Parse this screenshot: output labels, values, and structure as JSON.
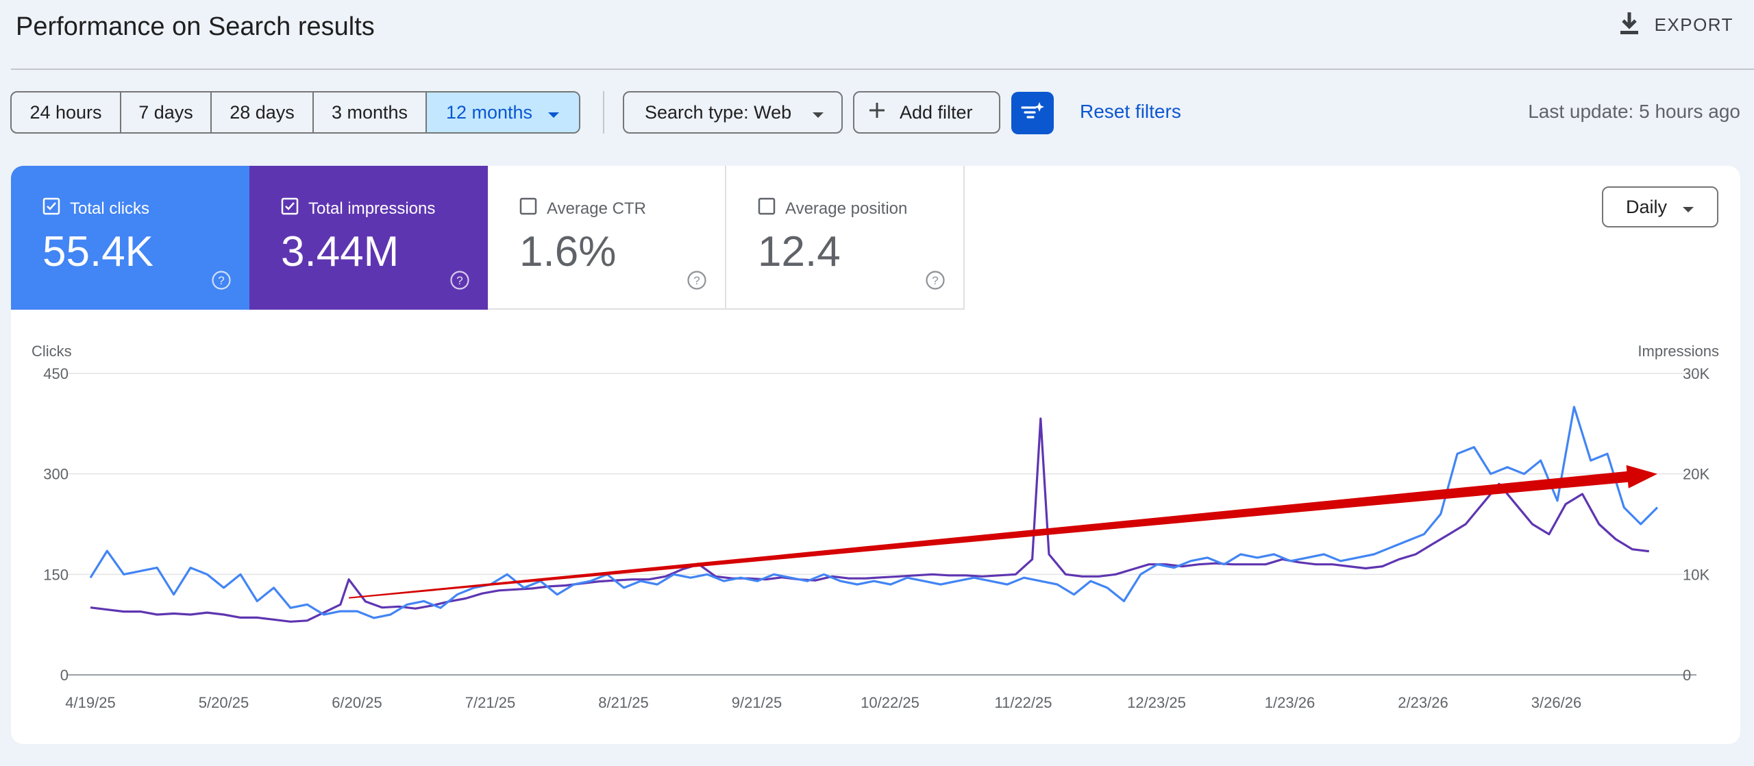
{
  "header": {
    "title": "Performance on Search results",
    "export_label": "EXPORT"
  },
  "toolbar": {
    "ranges": [
      "24 hours",
      "7 days",
      "28 days",
      "3 months",
      "12 months"
    ],
    "search_type": "Search type: Web",
    "add_filter": "Add filter",
    "reset_filters": "Reset filters",
    "last_update": "Last update: 5 hours ago"
  },
  "metrics": {
    "clicks": {
      "label": "Total clicks",
      "value": "55.4K",
      "checked": true
    },
    "impressions": {
      "label": "Total impressions",
      "value": "3.44M",
      "checked": true
    },
    "ctr": {
      "label": "Average CTR",
      "value": "1.6%",
      "checked": false
    },
    "position": {
      "label": "Average position",
      "value": "12.4",
      "checked": false
    }
  },
  "granularity": "Daily",
  "colors": {
    "clicks": "#4285f4",
    "impressions": "#5e35b1",
    "accent": "#0b57d0",
    "trend_arrow": "#d50000"
  },
  "chart_data": {
    "type": "line",
    "left_axis_title": "Clicks",
    "right_axis_title": "Impressions",
    "left_ticks": [
      "0",
      "150",
      "300",
      "450"
    ],
    "right_ticks": [
      "0",
      "10K",
      "20K",
      "30K"
    ],
    "ylim_left": [
      0,
      450
    ],
    "ylim_right": [
      0,
      30000
    ],
    "x_tick_labels": [
      "4/19/25",
      "5/20/25",
      "6/20/25",
      "7/21/25",
      "8/21/25",
      "9/21/25",
      "10/22/25",
      "11/22/25",
      "12/23/25",
      "1/23/26",
      "2/23/26",
      "3/26/26"
    ],
    "grid": true,
    "series": [
      {
        "name": "Total clicks",
        "axis": "left",
        "color": "#4285f4",
        "points": [
          [
            "4/19/25",
            145
          ],
          [
            "4/23/25",
            185
          ],
          [
            "4/27/25",
            150
          ],
          [
            "5/1/25",
            155
          ],
          [
            "5/5/25",
            160
          ],
          [
            "5/9/25",
            120
          ],
          [
            "5/13/25",
            160
          ],
          [
            "5/17/25",
            150
          ],
          [
            "5/21/25",
            130
          ],
          [
            "5/25/25",
            150
          ],
          [
            "5/29/25",
            110
          ],
          [
            "6/2/25",
            130
          ],
          [
            "6/6/25",
            100
          ],
          [
            "6/10/25",
            105
          ],
          [
            "6/14/25",
            90
          ],
          [
            "6/18/25",
            95
          ],
          [
            "6/22/25",
            95
          ],
          [
            "6/26/25",
            85
          ],
          [
            "6/30/25",
            90
          ],
          [
            "7/4/25",
            105
          ],
          [
            "7/8/25",
            110
          ],
          [
            "7/12/25",
            100
          ],
          [
            "7/16/25",
            120
          ],
          [
            "7/20/25",
            130
          ],
          [
            "7/24/25",
            135
          ],
          [
            "7/28/25",
            150
          ],
          [
            "8/1/25",
            130
          ],
          [
            "8/5/25",
            140
          ],
          [
            "8/9/25",
            120
          ],
          [
            "8/13/25",
            135
          ],
          [
            "8/17/25",
            140
          ],
          [
            "8/21/25",
            150
          ],
          [
            "8/25/25",
            130
          ],
          [
            "8/29/25",
            140
          ],
          [
            "9/2/25",
            135
          ],
          [
            "9/6/25",
            150
          ],
          [
            "9/10/25",
            145
          ],
          [
            "9/14/25",
            150
          ],
          [
            "9/18/25",
            140
          ],
          [
            "9/22/25",
            145
          ],
          [
            "9/26/25",
            140
          ],
          [
            "9/30/25",
            150
          ],
          [
            "10/4/25",
            145
          ],
          [
            "10/8/25",
            140
          ],
          [
            "10/12/25",
            150
          ],
          [
            "10/16/25",
            140
          ],
          [
            "10/20/25",
            135
          ],
          [
            "10/24/25",
            140
          ],
          [
            "10/28/25",
            135
          ],
          [
            "11/1/25",
            145
          ],
          [
            "11/5/25",
            140
          ],
          [
            "11/9/25",
            135
          ],
          [
            "11/13/25",
            140
          ],
          [
            "11/17/25",
            145
          ],
          [
            "11/21/25",
            140
          ],
          [
            "11/25/25",
            135
          ],
          [
            "11/29/25",
            145
          ],
          [
            "12/3/25",
            140
          ],
          [
            "12/7/25",
            135
          ],
          [
            "12/11/25",
            120
          ],
          [
            "12/15/25",
            140
          ],
          [
            "12/19/25",
            130
          ],
          [
            "12/23/25",
            110
          ],
          [
            "12/27/25",
            150
          ],
          [
            "12/31/25",
            165
          ],
          [
            "1/4/26",
            160
          ],
          [
            "1/8/26",
            170
          ],
          [
            "1/12/26",
            175
          ],
          [
            "1/16/26",
            165
          ],
          [
            "1/20/26",
            180
          ],
          [
            "1/24/26",
            175
          ],
          [
            "1/28/26",
            180
          ],
          [
            "2/1/26",
            170
          ],
          [
            "2/5/26",
            175
          ],
          [
            "2/9/26",
            180
          ],
          [
            "2/13/26",
            170
          ],
          [
            "2/17/26",
            175
          ],
          [
            "2/21/26",
            180
          ],
          [
            "2/25/26",
            190
          ],
          [
            "3/1/26",
            200
          ],
          [
            "3/5/26",
            210
          ],
          [
            "3/9/26",
            240
          ],
          [
            "3/13/26",
            330
          ],
          [
            "3/17/26",
            340
          ],
          [
            "3/21/26",
            300
          ],
          [
            "3/25/26",
            310
          ],
          [
            "3/29/26",
            300
          ],
          [
            "4/2/26",
            320
          ],
          [
            "4/6/26",
            260
          ],
          [
            "4/10/26",
            400
          ],
          [
            "4/14/26",
            320
          ],
          [
            "4/18/26",
            330
          ],
          [
            "4/22/26",
            250
          ],
          [
            "4/26/26",
            225
          ],
          [
            "4/30/26",
            250
          ]
        ]
      },
      {
        "name": "Total impressions",
        "axis": "right",
        "color": "#5e35b1",
        "points": [
          [
            "4/19/25",
            6700
          ],
          [
            "4/23/25",
            6500
          ],
          [
            "4/27/25",
            6300
          ],
          [
            "5/1/25",
            6300
          ],
          [
            "5/5/25",
            6000
          ],
          [
            "5/9/25",
            6100
          ],
          [
            "5/13/25",
            6000
          ],
          [
            "5/17/25",
            6200
          ],
          [
            "5/21/25",
            6000
          ],
          [
            "5/25/25",
            5700
          ],
          [
            "5/29/25",
            5700
          ],
          [
            "6/2/25",
            5500
          ],
          [
            "6/6/25",
            5300
          ],
          [
            "6/10/25",
            5400
          ],
          [
            "6/14/25",
            6200
          ],
          [
            "6/18/25",
            7000
          ],
          [
            "6/20/25",
            9500
          ],
          [
            "6/24/25",
            7300
          ],
          [
            "6/28/25",
            6700
          ],
          [
            "7/2/25",
            6800
          ],
          [
            "7/6/25",
            6600
          ],
          [
            "7/10/25",
            6900
          ],
          [
            "7/14/25",
            7300
          ],
          [
            "7/18/25",
            7600
          ],
          [
            "7/22/25",
            8100
          ],
          [
            "7/26/25",
            8400
          ],
          [
            "7/30/25",
            8500
          ],
          [
            "8/3/25",
            8600
          ],
          [
            "8/7/25",
            8800
          ],
          [
            "8/11/25",
            8900
          ],
          [
            "8/15/25",
            9100
          ],
          [
            "8/19/25",
            9300
          ],
          [
            "8/23/25",
            9400
          ],
          [
            "8/27/25",
            9500
          ],
          [
            "8/31/25",
            9500
          ],
          [
            "9/4/25",
            9800
          ],
          [
            "9/8/25",
            10500
          ],
          [
            "9/12/25",
            11000
          ],
          [
            "9/16/25",
            9800
          ],
          [
            "9/20/25",
            9600
          ],
          [
            "9/24/25",
            9600
          ],
          [
            "9/28/25",
            9500
          ],
          [
            "10/2/25",
            9700
          ],
          [
            "10/6/25",
            9500
          ],
          [
            "10/10/25",
            9400
          ],
          [
            "10/14/25",
            9800
          ],
          [
            "10/18/25",
            9600
          ],
          [
            "10/22/25",
            9600
          ],
          [
            "10/26/25",
            9700
          ],
          [
            "10/30/25",
            9800
          ],
          [
            "11/3/25",
            9900
          ],
          [
            "11/7/25",
            10000
          ],
          [
            "11/11/25",
            9900
          ],
          [
            "11/15/25",
            9900
          ],
          [
            "11/19/25",
            9800
          ],
          [
            "11/23/25",
            9900
          ],
          [
            "11/27/25",
            10000
          ],
          [
            "12/1/25",
            11500
          ],
          [
            "12/3/25",
            25500
          ],
          [
            "12/5/25",
            12000
          ],
          [
            "12/9/25",
            10000
          ],
          [
            "12/13/25",
            9800
          ],
          [
            "12/17/25",
            9800
          ],
          [
            "12/21/25",
            10000
          ],
          [
            "12/25/25",
            10500
          ],
          [
            "12/29/25",
            11000
          ],
          [
            "1/2/26",
            11000
          ],
          [
            "1/6/26",
            10800
          ],
          [
            "1/10/26",
            11000
          ],
          [
            "1/14/26",
            11100
          ],
          [
            "1/18/26",
            11000
          ],
          [
            "1/22/26",
            11000
          ],
          [
            "1/26/26",
            11000
          ],
          [
            "1/30/26",
            11500
          ],
          [
            "2/3/26",
            11200
          ],
          [
            "2/7/26",
            11000
          ],
          [
            "2/11/26",
            11000
          ],
          [
            "2/15/26",
            10800
          ],
          [
            "2/19/26",
            10600
          ],
          [
            "2/23/26",
            10800
          ],
          [
            "2/27/26",
            11500
          ],
          [
            "3/3/26",
            12000
          ],
          [
            "3/7/26",
            13000
          ],
          [
            "3/11/26",
            14000
          ],
          [
            "3/15/26",
            15000
          ],
          [
            "3/19/26",
            17000
          ],
          [
            "3/23/26",
            19000
          ],
          [
            "3/27/26",
            17000
          ],
          [
            "3/31/26",
            15000
          ],
          [
            "4/4/26",
            14000
          ],
          [
            "4/8/26",
            17000
          ],
          [
            "4/12/26",
            18000
          ],
          [
            "4/16/26",
            15000
          ],
          [
            "4/20/26",
            13500
          ],
          [
            "4/24/26",
            12500
          ],
          [
            "4/28/26",
            12300
          ]
        ]
      }
    ],
    "annotation": {
      "type": "trend-arrow",
      "from": [
        "6/20/25",
        115
      ],
      "to": [
        "4/30/26",
        300
      ],
      "color": "#d50000"
    }
  }
}
